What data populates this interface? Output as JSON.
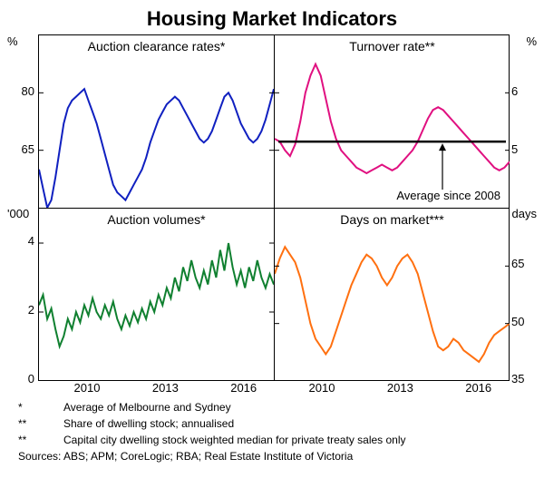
{
  "title": "Housing Market Indicators",
  "panels": {
    "tl": {
      "title": "Auction clearance rates*",
      "unit": "%",
      "ylim": [
        50,
        95
      ],
      "yticks": [
        65,
        80
      ],
      "color": "#1020c0",
      "line_width": 2,
      "data": [
        60,
        55,
        50,
        52,
        58,
        65,
        72,
        76,
        78,
        79,
        80,
        81,
        78,
        75,
        72,
        68,
        64,
        60,
        56,
        54,
        53,
        52,
        54,
        56,
        58,
        60,
        63,
        67,
        70,
        73,
        75,
        77,
        78,
        79,
        78,
        76,
        74,
        72,
        70,
        68,
        67,
        68,
        70,
        73,
        76,
        79,
        80,
        78,
        75,
        72,
        70,
        68,
        67,
        68,
        70,
        73,
        77,
        81
      ]
    },
    "tr": {
      "title": "Turnover rate**",
      "unit": "%",
      "ylim": [
        4,
        7
      ],
      "yticks": [
        5,
        6
      ],
      "color": "#e01080",
      "line_width": 2,
      "avg_line_color": "#000000",
      "avg_value": 5.15,
      "avg_label": "Average since 2008",
      "data": [
        5.2,
        5.15,
        5.0,
        4.9,
        5.1,
        5.5,
        6.0,
        6.3,
        6.5,
        6.3,
        5.9,
        5.5,
        5.2,
        5.0,
        4.9,
        4.8,
        4.7,
        4.65,
        4.6,
        4.65,
        4.7,
        4.75,
        4.7,
        4.65,
        4.7,
        4.8,
        4.9,
        5.0,
        5.15,
        5.35,
        5.55,
        5.7,
        5.75,
        5.7,
        5.6,
        5.5,
        5.4,
        5.3,
        5.2,
        5.1,
        5.0,
        4.9,
        4.8,
        4.7,
        4.65,
        4.7,
        4.8
      ]
    },
    "bl": {
      "title": "Auction volumes*",
      "unit": "'000",
      "ylim": [
        0,
        5
      ],
      "yticks": [
        0,
        2,
        4
      ],
      "color": "#108030",
      "line_width": 2,
      "data": [
        2.2,
        2.5,
        1.8,
        2.1,
        1.5,
        1.0,
        1.3,
        1.8,
        1.5,
        2.0,
        1.7,
        2.2,
        1.9,
        2.4,
        2.0,
        1.8,
        2.2,
        1.9,
        2.3,
        1.8,
        1.5,
        1.9,
        1.6,
        2.0,
        1.7,
        2.1,
        1.8,
        2.3,
        2.0,
        2.5,
        2.2,
        2.7,
        2.4,
        3.0,
        2.6,
        3.3,
        2.9,
        3.5,
        3.0,
        2.7,
        3.2,
        2.8,
        3.5,
        3.0,
        3.8,
        3.2,
        4.0,
        3.3,
        2.8,
        3.2,
        2.7,
        3.3,
        2.9,
        3.5,
        3.0,
        2.7,
        3.1,
        2.8
      ]
    },
    "br": {
      "title": "Days on market***",
      "unit": "days",
      "ylim": [
        35,
        80
      ],
      "yticks": [
        35,
        50,
        65
      ],
      "color": "#ff7010",
      "line_width": 2,
      "data": [
        63,
        67,
        70,
        68,
        66,
        62,
        56,
        50,
        46,
        44,
        42,
        44,
        48,
        52,
        56,
        60,
        63,
        66,
        68,
        67,
        65,
        62,
        60,
        62,
        65,
        67,
        68,
        66,
        63,
        58,
        53,
        48,
        44,
        43,
        44,
        46,
        45,
        43,
        42,
        41,
        40,
        42,
        45,
        47,
        48,
        49,
        50
      ]
    }
  },
  "xticks": [
    2010,
    2013,
    2016
  ],
  "x_range": [
    2008,
    2017
  ],
  "footnotes": [
    {
      "mark": "*",
      "text": "Average of Melbourne and Sydney"
    },
    {
      "mark": "**",
      "text": "Share of dwelling stock; annualised"
    },
    {
      "mark": "**",
      "text": "Capital city dwelling stock weighted median for private treaty sales only"
    }
  ],
  "sources_label": "Sources:",
  "sources": "ABS; APM; CoreLogic; RBA; Real Estate Institute of Victoria",
  "background_color": "#ffffff",
  "grid_visible": false
}
